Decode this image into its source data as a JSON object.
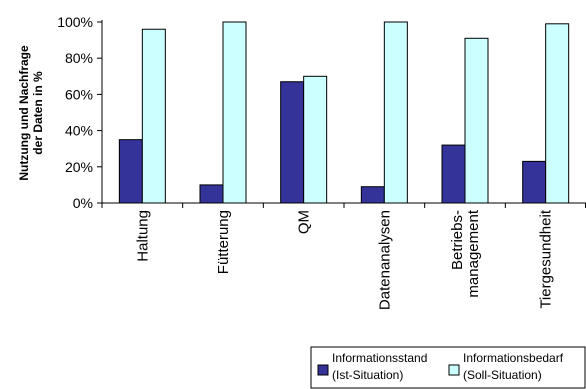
{
  "chart_data": {
    "type": "bar",
    "ylabel_lines": [
      "Nutzung und Nachfrage",
      "der Daten in %"
    ],
    "xlabel": "",
    "ylim": [
      0,
      100
    ],
    "yticks": [
      {
        "value": 0,
        "label": "0%"
      },
      {
        "value": 20,
        "label": "20%"
      },
      {
        "value": 40,
        "label": "40%"
      },
      {
        "value": 60,
        "label": "60%"
      },
      {
        "value": 80,
        "label": "80%"
      },
      {
        "value": 100,
        "label": "100%"
      }
    ],
    "grid": false,
    "legend_position": "bottom-right",
    "categories": [
      {
        "lines": [
          "Haltung"
        ]
      },
      {
        "lines": [
          "Fütterung"
        ]
      },
      {
        "lines": [
          "QM"
        ]
      },
      {
        "lines": [
          "Datenanalysen"
        ]
      },
      {
        "lines": [
          "Betriebs-",
          "management"
        ]
      },
      {
        "lines": [
          "Tiergesundheit"
        ]
      }
    ],
    "series": [
      {
        "name_lines": [
          "Informationsstand",
          "(Ist-Situation)"
        ],
        "color": "#333399",
        "values": [
          35,
          10,
          67,
          9,
          32,
          23
        ]
      },
      {
        "name_lines": [
          "Informationsbedarf",
          "(Soll-Situation)"
        ],
        "color": "#ccffff",
        "values": [
          96,
          100,
          70,
          100,
          91,
          99
        ]
      }
    ]
  }
}
